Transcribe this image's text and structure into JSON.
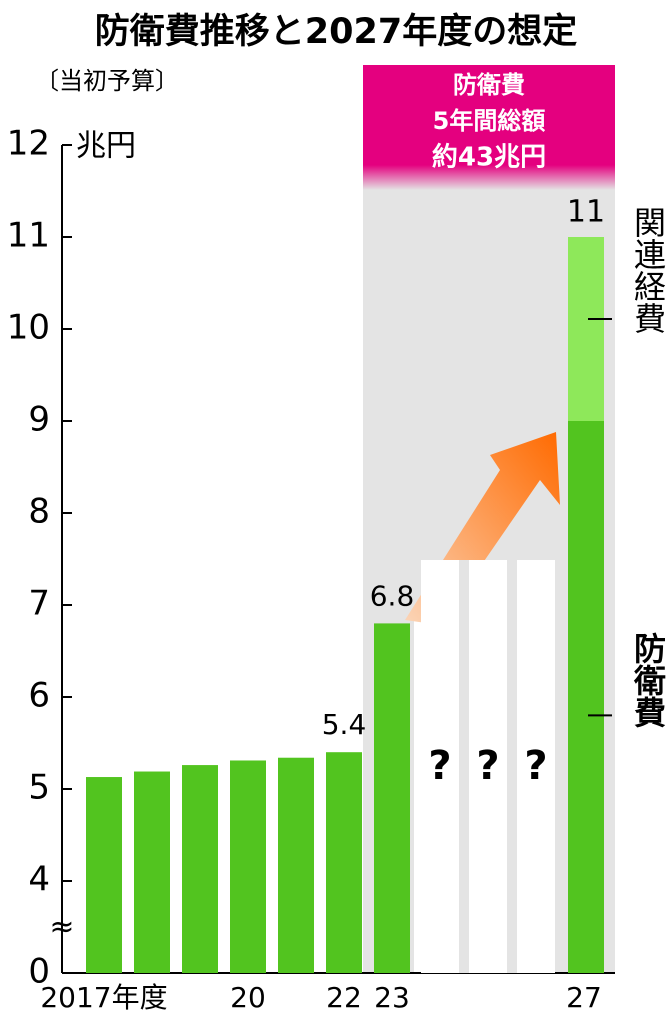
{
  "chart_data": {
    "type": "bar",
    "title": "防衛費推移と2027年度の想定",
    "subtitle": "〔当初予算〕",
    "y_label": "兆円",
    "categories": [
      "2017年度",
      null,
      null,
      "20",
      null,
      "22",
      "23",
      null,
      null,
      null,
      "27"
    ],
    "series": [
      {
        "name": "防衛費",
        "color": "#52c41f",
        "values": [
          5.13,
          5.19,
          5.26,
          5.31,
          5.34,
          5.4,
          6.8,
          null,
          null,
          null,
          9
        ],
        "value_labels": [
          null,
          null,
          null,
          null,
          null,
          "5.4",
          "6.8",
          null,
          null,
          null,
          null
        ]
      },
      {
        "name": "関連経費",
        "color": "#8ee85a",
        "values": [
          null,
          null,
          null,
          null,
          null,
          null,
          null,
          null,
          null,
          null,
          2
        ]
      }
    ],
    "stacked": true,
    "stack_total": {
      "category": "27",
      "value": 11
    },
    "missing_label": "?",
    "annotation": [
      "防衛費",
      "5年間総額",
      "約43兆円"
    ],
    "ylim": [
      0,
      12
    ],
    "axis_break": [
      0,
      4
    ],
    "yticks": [
      0,
      4,
      5,
      6,
      7,
      8,
      9,
      10,
      11,
      12
    ]
  }
}
